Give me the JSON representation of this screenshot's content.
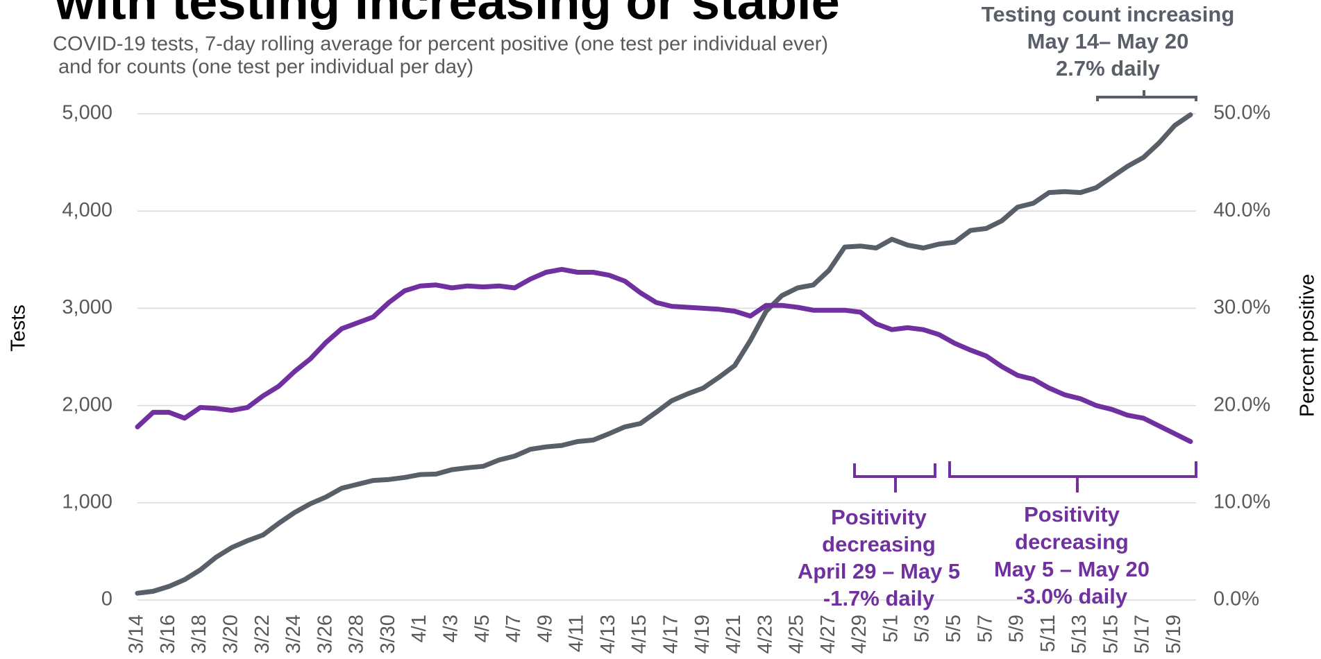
{
  "chart_data": {
    "type": "line",
    "title": "with testing increasing or stable",
    "subtitle": [
      "COVID-19 tests, 7-day rolling average for percent positive (one test per individual ever)",
      " and for counts (one test per individual per day)"
    ],
    "ylabel": "Tests",
    "y2label": "Percent positive",
    "categories": [
      "3/14",
      null,
      "3/16",
      null,
      "3/18",
      null,
      "3/20",
      null,
      "3/22",
      null,
      "3/24",
      null,
      "3/26",
      null,
      "3/28",
      null,
      "3/30",
      null,
      "4/1",
      null,
      "4/3",
      null,
      "4/5",
      null,
      "4/7",
      null,
      "4/9",
      null,
      "4/11",
      null,
      "4/13",
      null,
      "4/15",
      null,
      "4/17",
      null,
      "4/19",
      null,
      "4/21",
      null,
      "4/23",
      null,
      "4/25",
      null,
      "4/27",
      null,
      "4/29",
      null,
      "5/1",
      null,
      "5/3",
      null,
      "5/5",
      null,
      "5/7",
      null,
      "5/9",
      null,
      "5/11",
      null,
      "5/13",
      null,
      "5/15",
      null,
      "5/17",
      null,
      "5/19",
      null
    ],
    "series": [
      {
        "name": "Tests",
        "color": "#595f69",
        "axis": "y",
        "values": [
          70,
          90,
          140,
          210,
          310,
          440,
          540,
          610,
          670,
          790,
          900,
          990,
          1060,
          1150,
          1190,
          1230,
          1240,
          1260,
          1290,
          1295,
          1340,
          1360,
          1375,
          1440,
          1480,
          1550,
          1575,
          1590,
          1630,
          1645,
          1710,
          1780,
          1815,
          1930,
          2050,
          2120,
          2180,
          2290,
          2410,
          2670,
          2970,
          3130,
          3210,
          3240,
          3390,
          3630,
          3640,
          3620,
          3710,
          3650,
          3620,
          3660,
          3680,
          3800,
          3820,
          3900,
          4040,
          4080,
          4190,
          4200,
          4190,
          4240,
          4350,
          4460,
          4550,
          4700,
          4880,
          4990
        ]
      },
      {
        "name": "Percent positive",
        "color": "#7030a0",
        "axis": "y2",
        "values": [
          17.8,
          19.3,
          19.3,
          18.7,
          19.8,
          19.7,
          19.5,
          19.8,
          21.0,
          22.0,
          23.5,
          24.8,
          26.5,
          27.9,
          28.5,
          29.1,
          30.6,
          31.8,
          32.3,
          32.4,
          32.1,
          32.3,
          32.2,
          32.3,
          32.1,
          33.0,
          33.7,
          34.0,
          33.7,
          33.7,
          33.4,
          32.8,
          31.6,
          30.6,
          30.2,
          30.1,
          30.0,
          29.9,
          29.7,
          29.2,
          30.3,
          30.3,
          30.1,
          29.8,
          29.8,
          29.8,
          29.6,
          28.4,
          27.8,
          28.0,
          27.8,
          27.3,
          26.4,
          25.7,
          25.1,
          24.0,
          23.1,
          22.7,
          21.8,
          21.1,
          20.7,
          20.0,
          19.6,
          19.0,
          18.7,
          17.9,
          17.1,
          16.3
        ]
      }
    ],
    "ylim": [
      0,
      5000
    ],
    "yticks": [
      0,
      {
        "value": 1000,
        "label": "1,000"
      },
      {
        "value": 2000,
        "label": "2,000"
      },
      {
        "value": 3000,
        "label": "3,000"
      },
      {
        "value": 4000,
        "label": "4,000"
      },
      {
        "value": 5000,
        "label": "5,000"
      }
    ],
    "y2lim": [
      0,
      50
    ],
    "y2ticks": [
      {
        "value": 0,
        "label": "0.0%"
      },
      {
        "value": 10,
        "label": "10.0%"
      },
      {
        "value": 20,
        "label": "20.0%"
      },
      {
        "value": 30,
        "label": "30.0%"
      },
      {
        "value": 40,
        "label": "40.0%"
      },
      {
        "value": 50,
        "label": "50.0%"
      }
    ],
    "grid": true,
    "annotations": [
      {
        "color": "#595f69",
        "lines": [
          "Testing count increasing",
          "May 14– May 20",
          "2.7% daily"
        ]
      },
      {
        "color": "#7030a0",
        "lines": [
          "Positivity",
          "decreasing",
          "April 29 – May 5",
          "-1.7% daily"
        ]
      },
      {
        "color": "#7030a0",
        "lines": [
          "Positivity",
          "decreasing",
          "May 5 – May 20",
          "-3.0% daily"
        ]
      }
    ]
  }
}
